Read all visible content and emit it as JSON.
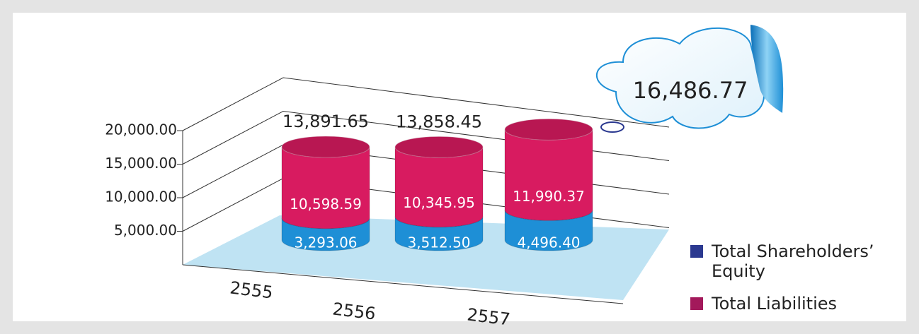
{
  "chart_data": {
    "type": "bar",
    "stacked": true,
    "categories": [
      "2555",
      "2556",
      "2557"
    ],
    "series": [
      {
        "name": "Total Shareholders’ Equity",
        "color": "#1e8fd6",
        "values": [
          3293.06,
          3512.5,
          4496.4
        ],
        "value_labels": [
          "3,293.06",
          "3,512.50",
          "4,496.40"
        ]
      },
      {
        "name": "Total Liabilities",
        "color": "#d81b60",
        "values": [
          10598.59,
          10345.95,
          11990.37
        ],
        "value_labels": [
          "10,598.59",
          "10,345.95",
          "11,990.37"
        ]
      }
    ],
    "totals": {
      "values": [
        13891.65,
        13858.45,
        16486.77
      ],
      "value_labels": [
        "13,891.65",
        "13,858.45",
        "16,486.77"
      ]
    },
    "ylim": [
      0,
      20000
    ],
    "yticks": [
      {
        "value": 5000,
        "label": "5,000.00"
      },
      {
        "value": 10000,
        "label": "10,000.00"
      },
      {
        "value": 15000,
        "label": "15,000.00"
      },
      {
        "value": 20000,
        "label": "20,000.00"
      }
    ],
    "grid": true
  }
}
